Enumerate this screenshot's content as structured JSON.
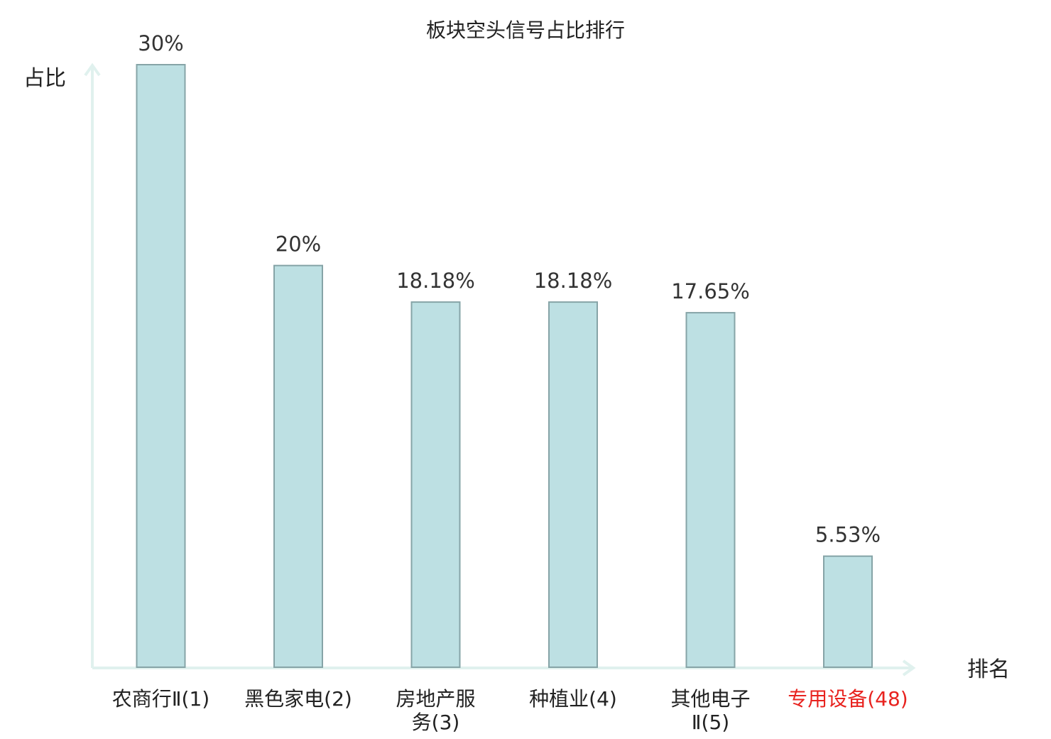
{
  "chart_data": {
    "type": "bar",
    "title": "板块空头信号占比排行",
    "ylabel": "占比",
    "xlabel": "排名",
    "categories": [
      [
        "农商行Ⅱ(1)"
      ],
      [
        "黑色家电(2)"
      ],
      [
        "房地产服",
        "务(3)"
      ],
      [
        "种植业(4)"
      ],
      [
        "其他电子",
        "Ⅱ(5)"
      ],
      [
        "专用设备(48)"
      ]
    ],
    "values": [
      30,
      20,
      18.18,
      18.18,
      17.65,
      5.53
    ],
    "value_labels": [
      "30%",
      "20%",
      "18.18%",
      "18.18%",
      "17.65%",
      "5.53%"
    ],
    "highlight_index": 5,
    "ylim": [
      0,
      30
    ],
    "colors": {
      "bar_fill": "#bde0e3",
      "bar_stroke": "#86a4a7",
      "axis": "#e0f1ee",
      "highlight_text": "#e8231f"
    }
  }
}
